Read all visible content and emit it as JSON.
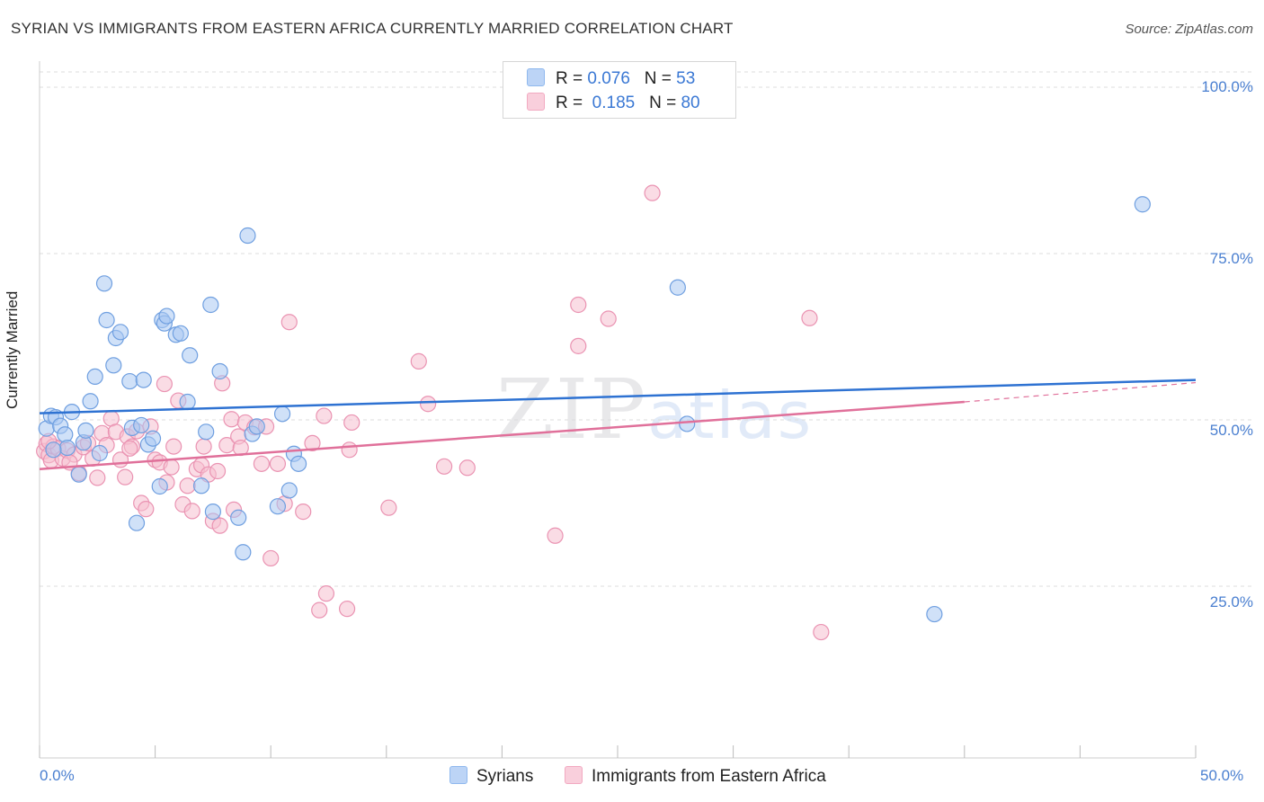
{
  "header": {
    "title": "SYRIAN VS IMMIGRANTS FROM EASTERN AFRICA CURRENTLY MARRIED CORRELATION CHART",
    "source": "Source: ZipAtlas.com"
  },
  "watermark": {
    "zip": "ZIP",
    "atlas": "atlas"
  },
  "legend": {
    "rows": [
      {
        "r_label": "R =",
        "r_value": "0.076",
        "n_label": "N =",
        "n_value": "53",
        "color": "#8fb8ee"
      },
      {
        "r_label": "R =",
        "r_value": "0.185",
        "n_label": "N =",
        "n_value": "80",
        "color": "#f2a9c1"
      }
    ]
  },
  "bottom_legend": {
    "series1": "Syrians",
    "series2": "Immigrants from Eastern Africa"
  },
  "colors": {
    "blue_fill": "#a9c8f3",
    "blue_stroke": "#6f9fe0",
    "blue_line": "#2e72d2",
    "pink_fill": "#f6bfd0",
    "pink_stroke": "#ea93b2",
    "pink_line": "#e0709a",
    "tick_text": "#4a7fd0",
    "grid": "#dddddd"
  },
  "chart_data": {
    "type": "scatter",
    "title": "SYRIAN VS IMMIGRANTS FROM EASTERN AFRICA CURRENTLY MARRIED CORRELATION CHART",
    "xlabel": "",
    "ylabel": "Currently Married",
    "xlim": [
      0,
      50
    ],
    "ylim": [
      0,
      105
    ],
    "x_tick_labels": [
      "0.0%",
      "50.0%"
    ],
    "y_ticks": [
      25,
      50,
      75,
      100
    ],
    "y_tick_labels": [
      "25.0%",
      "50.0%",
      "75.0%",
      "100.0%"
    ],
    "grid": true,
    "legend_position": "top-center",
    "series": [
      {
        "name": "Syrians",
        "r": 0.076,
        "n": 53,
        "trend": {
          "x": [
            0,
            50
          ],
          "y": [
            51.0,
            56.0
          ]
        },
        "points": [
          [
            0.3,
            48.7
          ],
          [
            0.5,
            50.6
          ],
          [
            0.7,
            50.4
          ],
          [
            0.9,
            49.1
          ],
          [
            1.1,
            47.8
          ],
          [
            1.4,
            51.2
          ],
          [
            1.7,
            41.8
          ],
          [
            1.9,
            46.6
          ],
          [
            2.0,
            48.4
          ],
          [
            2.2,
            52.8
          ],
          [
            2.4,
            56.5
          ],
          [
            2.8,
            70.5
          ],
          [
            2.9,
            65.0
          ],
          [
            3.2,
            58.2
          ],
          [
            3.3,
            62.3
          ],
          [
            3.5,
            63.2
          ],
          [
            3.9,
            55.8
          ],
          [
            4.0,
            48.8
          ],
          [
            4.2,
            34.5
          ],
          [
            4.4,
            49.2
          ],
          [
            4.5,
            56.0
          ],
          [
            4.7,
            46.3
          ],
          [
            4.9,
            47.2
          ],
          [
            5.2,
            40.0
          ],
          [
            5.3,
            65.0
          ],
          [
            5.4,
            64.5
          ],
          [
            5.5,
            65.6
          ],
          [
            5.9,
            62.8
          ],
          [
            6.1,
            63.0
          ],
          [
            6.4,
            52.7
          ],
          [
            6.5,
            59.7
          ],
          [
            7.0,
            40.1
          ],
          [
            7.2,
            48.2
          ],
          [
            7.4,
            67.3
          ],
          [
            7.5,
            36.2
          ],
          [
            7.8,
            57.3
          ],
          [
            8.6,
            35.3
          ],
          [
            8.8,
            30.1
          ],
          [
            9.0,
            77.7
          ],
          [
            9.2,
            47.9
          ],
          [
            9.4,
            49.0
          ],
          [
            10.3,
            37.0
          ],
          [
            10.5,
            50.9
          ],
          [
            10.8,
            39.4
          ],
          [
            11.0,
            44.9
          ],
          [
            11.2,
            43.4
          ],
          [
            27.6,
            69.9
          ],
          [
            28.0,
            49.4
          ],
          [
            38.7,
            20.8
          ],
          [
            47.7,
            82.4
          ],
          [
            1.2,
            45.8
          ],
          [
            2.6,
            45.0
          ],
          [
            0.6,
            45.5
          ]
        ]
      },
      {
        "name": "Immigrants from Eastern Africa",
        "r": 0.185,
        "n": 80,
        "trend": {
          "x": [
            0,
            40
          ],
          "y": [
            42.6,
            52.7
          ]
        },
        "trend_dashed": {
          "x": [
            40,
            50
          ],
          "y": [
            52.7,
            55.6
          ]
        },
        "points": [
          [
            0.2,
            45.3
          ],
          [
            0.3,
            46.4
          ],
          [
            0.4,
            44.7
          ],
          [
            0.5,
            43.9
          ],
          [
            0.6,
            46.0
          ],
          [
            0.8,
            45.7
          ],
          [
            1.0,
            44.2
          ],
          [
            1.2,
            45.4
          ],
          [
            1.5,
            44.8
          ],
          [
            1.7,
            42.0
          ],
          [
            1.9,
            45.9
          ],
          [
            2.1,
            46.5
          ],
          [
            2.3,
            44.2
          ],
          [
            2.5,
            41.3
          ],
          [
            2.7,
            48.0
          ],
          [
            2.9,
            46.2
          ],
          [
            3.1,
            50.2
          ],
          [
            3.3,
            48.2
          ],
          [
            3.5,
            44.0
          ],
          [
            3.7,
            41.4
          ],
          [
            3.8,
            47.5
          ],
          [
            4.0,
            46.0
          ],
          [
            4.2,
            48.3
          ],
          [
            4.4,
            37.5
          ],
          [
            4.6,
            36.6
          ],
          [
            4.8,
            49.0
          ],
          [
            5.0,
            44.0
          ],
          [
            5.2,
            43.6
          ],
          [
            5.4,
            55.4
          ],
          [
            5.5,
            40.6
          ],
          [
            5.7,
            42.9
          ],
          [
            5.8,
            46.0
          ],
          [
            6.0,
            52.9
          ],
          [
            6.2,
            37.3
          ],
          [
            6.4,
            40.1
          ],
          [
            6.6,
            36.3
          ],
          [
            6.8,
            42.6
          ],
          [
            7.0,
            43.2
          ],
          [
            7.1,
            46.0
          ],
          [
            7.3,
            41.8
          ],
          [
            7.5,
            34.8
          ],
          [
            7.7,
            42.3
          ],
          [
            7.8,
            34.1
          ],
          [
            7.9,
            55.5
          ],
          [
            8.1,
            46.2
          ],
          [
            8.3,
            50.1
          ],
          [
            8.4,
            36.5
          ],
          [
            8.6,
            47.5
          ],
          [
            8.7,
            45.8
          ],
          [
            8.9,
            49.6
          ],
          [
            9.3,
            48.9
          ],
          [
            9.6,
            43.4
          ],
          [
            9.8,
            49.0
          ],
          [
            10.0,
            29.2
          ],
          [
            10.3,
            43.4
          ],
          [
            10.6,
            37.4
          ],
          [
            10.8,
            64.7
          ],
          [
            11.4,
            36.2
          ],
          [
            11.8,
            46.5
          ],
          [
            12.1,
            21.4
          ],
          [
            12.3,
            50.6
          ],
          [
            12.4,
            23.9
          ],
          [
            13.3,
            21.6
          ],
          [
            13.4,
            45.5
          ],
          [
            13.5,
            49.6
          ],
          [
            15.1,
            36.8
          ],
          [
            16.4,
            58.8
          ],
          [
            16.8,
            52.4
          ],
          [
            17.5,
            43.0
          ],
          [
            18.5,
            42.8
          ],
          [
            22.3,
            32.6
          ],
          [
            23.3,
            67.3
          ],
          [
            23.3,
            61.1
          ],
          [
            24.6,
            65.2
          ],
          [
            26.5,
            84.1
          ],
          [
            33.3,
            65.3
          ],
          [
            33.8,
            18.1
          ],
          [
            0.4,
            46.8
          ],
          [
            1.3,
            43.6
          ],
          [
            3.9,
            45.7
          ]
        ]
      }
    ]
  }
}
